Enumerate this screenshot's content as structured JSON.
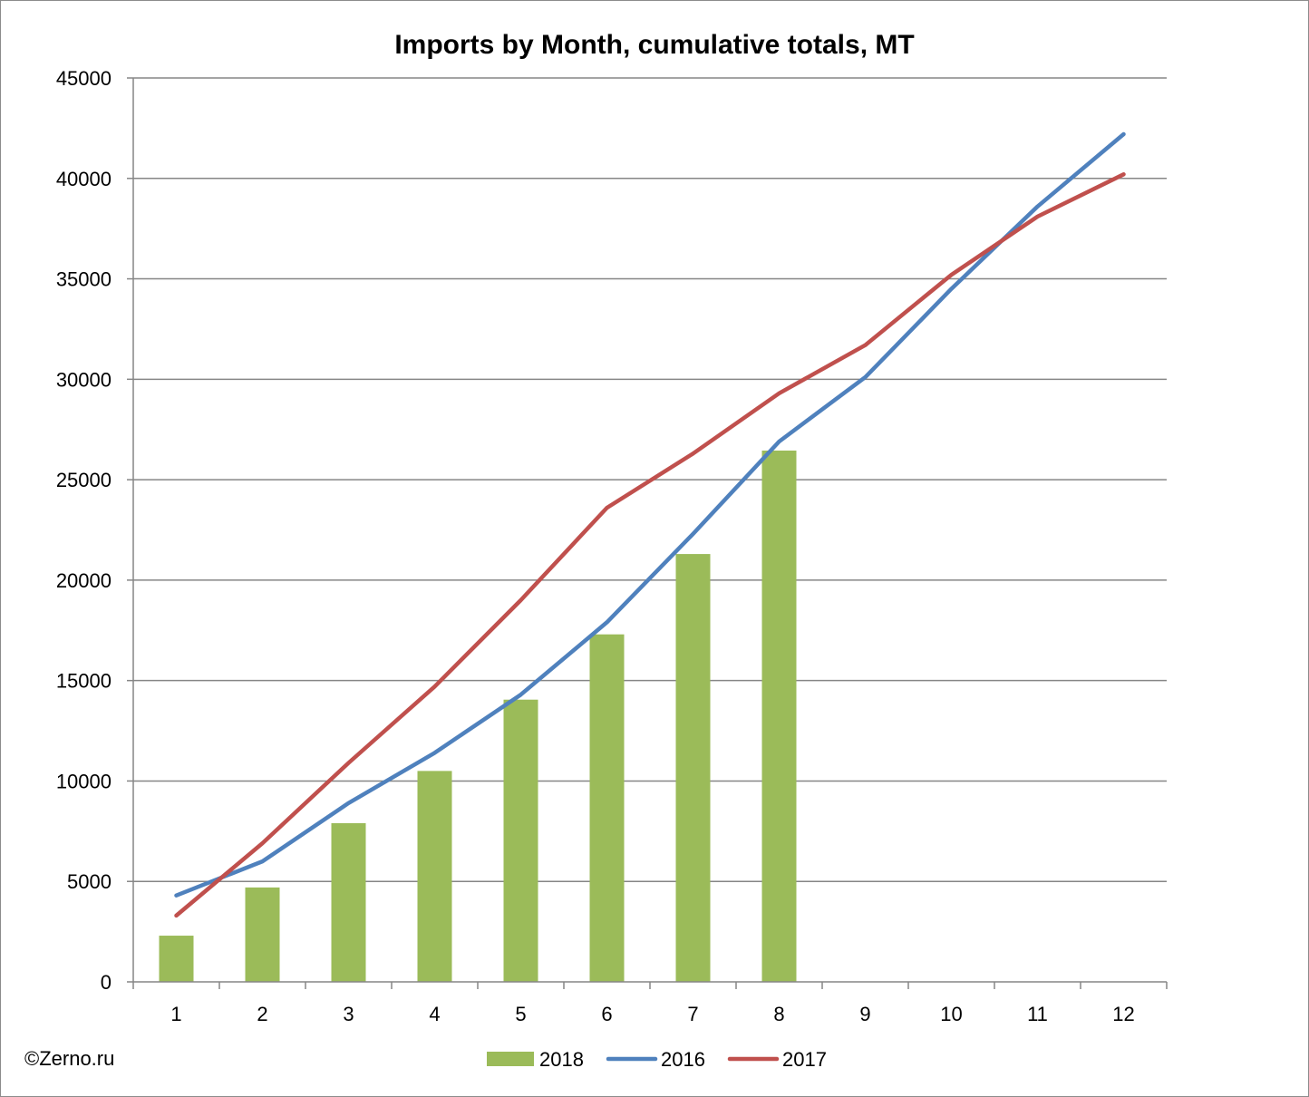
{
  "chart_data": {
    "type": "bar",
    "title": "Imports by Month, cumulative totals, MT",
    "xlabel": "",
    "ylabel": "",
    "categories": [
      "1",
      "2",
      "3",
      "4",
      "5",
      "6",
      "7",
      "8",
      "9",
      "10",
      "11",
      "12"
    ],
    "ylim": [
      0,
      45000
    ],
    "yticks": [
      "0",
      "5000",
      "10000",
      "15000",
      "20000",
      "25000",
      "30000",
      "35000",
      "40000",
      "45000"
    ],
    "grid": "horizontal",
    "legend_position": "bottom",
    "series": [
      {
        "name": "2018",
        "type": "bar",
        "color": "#9bbb59",
        "values": [
          2300,
          4700,
          7900,
          10500,
          14050,
          17300,
          21300,
          26450,
          null,
          null,
          null,
          null
        ]
      },
      {
        "name": "2016",
        "type": "line",
        "color": "#4f81bd",
        "values": [
          4300,
          6000,
          8900,
          11400,
          14300,
          17900,
          22300,
          26900,
          30100,
          34500,
          38600,
          42200
        ]
      },
      {
        "name": "2017",
        "type": "line",
        "color": "#c0504d",
        "values": [
          3300,
          6900,
          10900,
          14700,
          19000,
          23600,
          26300,
          29300,
          31700,
          35200,
          38100,
          40200
        ]
      }
    ]
  },
  "footer": {
    "copyright": "©Zerno.ru"
  }
}
